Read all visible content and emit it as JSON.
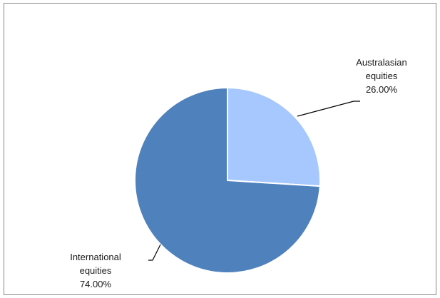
{
  "chart_data": {
    "type": "pie",
    "title": "",
    "slices": [
      {
        "name_lines": [
          "Australasian",
          "equities"
        ],
        "value": 26.0,
        "label": "26.00%",
        "color": "#a6c8ff"
      },
      {
        "name_lines": [
          "International",
          "equities"
        ],
        "value": 74.0,
        "label": "74.00%",
        "color": "#4f81bd"
      }
    ],
    "start_angle_deg": 0,
    "direction": "clockwise",
    "legend": "none",
    "data_labels": "outside with leader lines"
  }
}
